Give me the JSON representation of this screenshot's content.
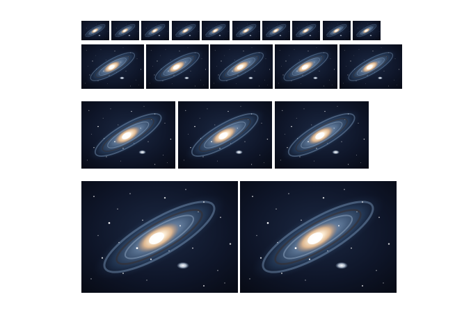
{
  "image": {
    "subject": "galaxy",
    "rows": [
      {
        "name": "row-1",
        "count": 10
      },
      {
        "name": "row-2",
        "count": 5
      },
      {
        "name": "row-3",
        "count": 3
      },
      {
        "name": "row-4",
        "count": 2
      }
    ],
    "colors": {
      "background": "#ffffff",
      "space": "#0b0f1c",
      "arm": "#7fa6cc",
      "core": "#fff6e6",
      "core_warm": "#f2c79a"
    }
  }
}
